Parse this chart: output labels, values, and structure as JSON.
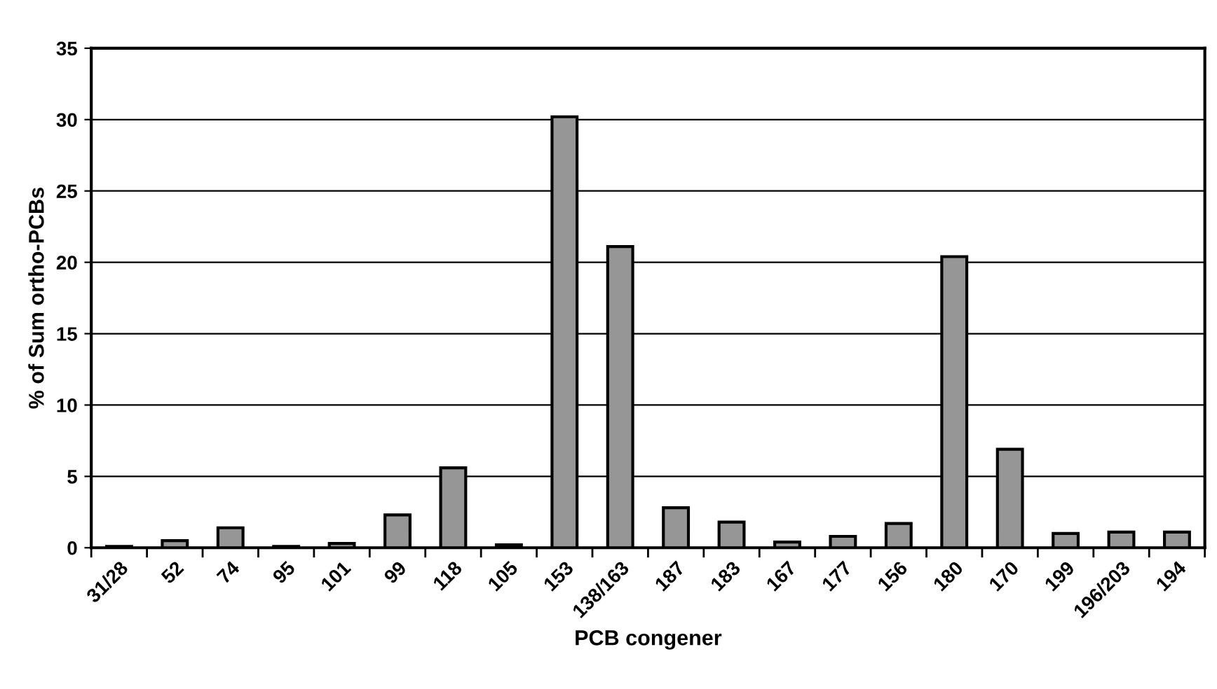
{
  "chart_data": {
    "type": "bar",
    "xlabel": "PCB congener",
    "ylabel": "% of Sum ortho-PCBs",
    "categories": [
      "31/28",
      "52",
      "74",
      "95",
      "101",
      "99",
      "118",
      "105",
      "153",
      "138/163",
      "187",
      "183",
      "167",
      "177",
      "156",
      "180",
      "170",
      "199",
      "196/203",
      "194"
    ],
    "values": [
      0.1,
      0.5,
      1.4,
      0.1,
      0.3,
      2.3,
      5.6,
      0.2,
      30.2,
      21.1,
      2.8,
      1.8,
      0.4,
      0.8,
      1.7,
      20.4,
      6.9,
      1.0,
      1.1,
      1.1
    ],
    "color": "#969696",
    "ylim": [
      0,
      35
    ],
    "yticks": [
      0,
      5,
      10,
      15,
      20,
      25,
      30,
      35
    ],
    "grid": "y"
  }
}
